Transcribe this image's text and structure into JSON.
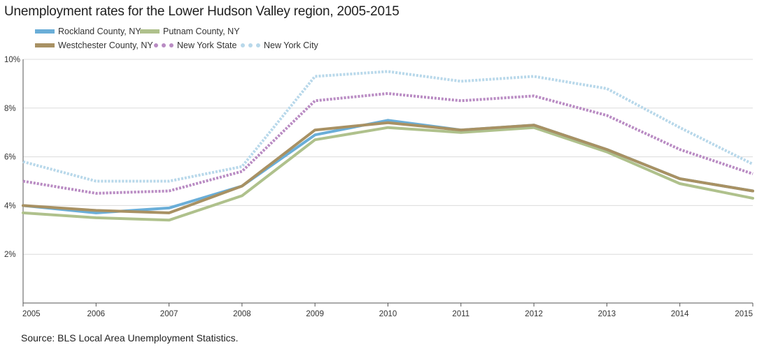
{
  "title": "Unemployment rates for the Lower Hudson Valley region, 2005-2015",
  "source": "Source: BLS Local Area Unemployment Statistics.",
  "colors": {
    "rockland": "#6aaed8",
    "putnam": "#afc18c",
    "westchester": "#a89163",
    "nys": "#b98bc3",
    "nyc": "#b8d8ea",
    "grid": "#dcdcdc",
    "axis": "#555555"
  },
  "chart_data": {
    "type": "line",
    "title": "Unemployment rates for the Lower Hudson Valley region, 2005-2015",
    "xlabel": "",
    "ylabel": "",
    "x": [
      "2005",
      "2006",
      "2007",
      "2008",
      "2009",
      "2010",
      "2011",
      "2012",
      "2013",
      "2014",
      "2015"
    ],
    "ylim": [
      0,
      10
    ],
    "yticks": [
      "2%",
      "4%",
      "6%",
      "8%",
      "10%"
    ],
    "grid": true,
    "legend": "top-left",
    "series": [
      {
        "name": "Rockland County, NY",
        "key": "rockland",
        "style": "solid",
        "values": [
          4.0,
          3.7,
          3.9,
          4.8,
          6.9,
          7.5,
          7.1,
          7.3,
          6.3,
          5.1,
          4.6
        ]
      },
      {
        "name": "Putnam County, NY",
        "key": "putnam",
        "style": "solid",
        "values": [
          3.7,
          3.5,
          3.4,
          4.4,
          6.7,
          7.2,
          7.0,
          7.2,
          6.2,
          4.9,
          4.3
        ]
      },
      {
        "name": "Westchester County, NY",
        "key": "westchester",
        "style": "solid",
        "values": [
          4.0,
          3.8,
          3.7,
          4.8,
          7.1,
          7.4,
          7.1,
          7.3,
          6.3,
          5.1,
          4.6
        ]
      },
      {
        "name": "New York State",
        "key": "nys",
        "style": "dotted",
        "values": [
          5.0,
          4.5,
          4.6,
          5.4,
          8.3,
          8.6,
          8.3,
          8.5,
          7.7,
          6.3,
          5.3
        ]
      },
      {
        "name": "New York City",
        "key": "nyc",
        "style": "dotted",
        "values": [
          5.8,
          5.0,
          5.0,
          5.6,
          9.3,
          9.5,
          9.1,
          9.3,
          8.8,
          7.2,
          5.7
        ]
      }
    ]
  }
}
